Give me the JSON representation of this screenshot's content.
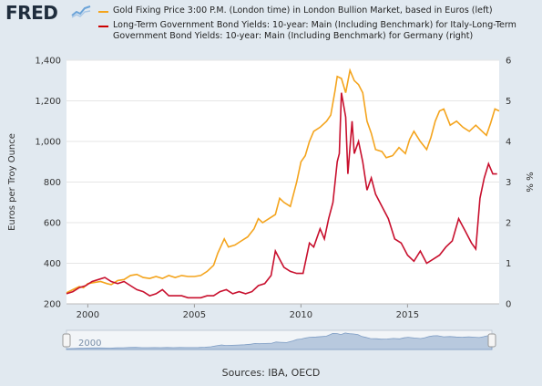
{
  "header": {
    "logo_text": "FRED",
    "logo_icon": "line-chart-icon"
  },
  "legend": {
    "gold_label": "Gold Fixing Price 3:00 P.M. (London time) in London Bullion Market, based in Euros (left)",
    "bonds_label": "Long-Term Government Bond Yields: 10-year: Main (Including Benchmark) for Italy-Long-Term Government Bond Yields: 10-year: Main (Including Benchmark) for Germany (right)"
  },
  "footer": {
    "sources": "Sources: IBA, OECD"
  },
  "colors": {
    "gold": "#f4a41d",
    "spread": "#c8102e",
    "plot_bg": "#ffffff",
    "page_bg": "#e1e9f0",
    "navigator_fill": "#b8c9de"
  },
  "navigator": {
    "label": "2000"
  },
  "chart_data": {
    "type": "line",
    "x_axis": {
      "ticks": [
        "2000",
        "2005",
        "2010",
        "2015"
      ],
      "range": [
        1999.0,
        2019.3
      ]
    },
    "y_left": {
      "label": "Euros per Troy Ounce",
      "range": [
        200,
        1400
      ],
      "ticks": [
        "200",
        "400",
        "600",
        "800",
        "1,000",
        "1,200",
        "1,400"
      ]
    },
    "y_right": {
      "label": "% %",
      "range": [
        0,
        6
      ],
      "ticks": [
        "0",
        "1",
        "2",
        "3",
        "4",
        "5",
        "6"
      ]
    },
    "grid": true,
    "series": [
      {
        "name": "Gold Fixing Price 3:00 P.M. (London time) in London Bullion Market, based in Euros (left)",
        "axis": "left",
        "x": [
          1999.0,
          1999.3,
          1999.6,
          1999.8,
          2000.0,
          2000.3,
          2000.6,
          2000.9,
          2001.1,
          2001.4,
          2001.7,
          2002.0,
          2002.3,
          2002.6,
          2002.9,
          2003.2,
          2003.5,
          2003.8,
          2004.1,
          2004.4,
          2004.7,
          2005.0,
          2005.3,
          2005.6,
          2005.9,
          2006.1,
          2006.4,
          2006.6,
          2006.9,
          2007.2,
          2007.5,
          2007.8,
          2008.0,
          2008.2,
          2008.5,
          2008.8,
          2009.0,
          2009.2,
          2009.5,
          2009.8,
          2010.0,
          2010.2,
          2010.4,
          2010.6,
          2010.9,
          2011.2,
          2011.4,
          2011.6,
          2011.7,
          2011.9,
          2012.1,
          2012.3,
          2012.5,
          2012.7,
          2012.9,
          2013.1,
          2013.3,
          2013.5,
          2013.8,
          2014.0,
          2014.3,
          2014.6,
          2014.9,
          2015.1,
          2015.3,
          2015.6,
          2015.9,
          2016.1,
          2016.3,
          2016.5,
          2016.7,
          2017.0,
          2017.3,
          2017.6,
          2017.9,
          2018.2,
          2018.5,
          2018.7,
          2018.9,
          2019.1,
          2019.3
        ],
        "y": [
          255,
          270,
          285,
          280,
          300,
          305,
          310,
          300,
          295,
          315,
          320,
          340,
          345,
          330,
          325,
          335,
          325,
          340,
          330,
          340,
          335,
          335,
          340,
          360,
          390,
          450,
          520,
          480,
          490,
          510,
          530,
          570,
          620,
          600,
          620,
          640,
          720,
          700,
          680,
          800,
          900,
          930,
          1000,
          1050,
          1070,
          1100,
          1130,
          1250,
          1320,
          1310,
          1240,
          1350,
          1300,
          1280,
          1240,
          1100,
          1040,
          960,
          950,
          920,
          930,
          970,
          940,
          1010,
          1050,
          1000,
          960,
          1020,
          1100,
          1150,
          1160,
          1080,
          1100,
          1070,
          1050,
          1080,
          1050,
          1030,
          1090,
          1160,
          1150
        ]
      },
      {
        "name": "Long-Term Government Bond Yields: 10-year: Main (Including Benchmark) for Italy-Long-Term Government Bond Yields: 10-year: Main (Including Benchmark) for Germany (right)",
        "axis": "right",
        "x": [
          1999.0,
          1999.3,
          1999.6,
          1999.9,
          2000.2,
          2000.5,
          2000.8,
          2001.1,
          2001.4,
          2001.7,
          2002.0,
          2002.3,
          2002.6,
          2002.9,
          2003.2,
          2003.5,
          2003.8,
          2004.1,
          2004.4,
          2004.7,
          2005.0,
          2005.3,
          2005.6,
          2005.9,
          2006.2,
          2006.5,
          2006.8,
          2007.1,
          2007.4,
          2007.7,
          2008.0,
          2008.3,
          2008.6,
          2008.8,
          2009.0,
          2009.2,
          2009.5,
          2009.8,
          2010.1,
          2010.4,
          2010.6,
          2010.9,
          2011.1,
          2011.3,
          2011.5,
          2011.7,
          2011.8,
          2011.9,
          2012.1,
          2012.2,
          2012.4,
          2012.5,
          2012.7,
          2012.9,
          2013.1,
          2013.3,
          2013.5,
          2013.8,
          2014.1,
          2014.4,
          2014.7,
          2015.0,
          2015.3,
          2015.6,
          2015.9,
          2016.2,
          2016.5,
          2016.8,
          2017.1,
          2017.4,
          2017.7,
          2018.0,
          2018.2,
          2018.4,
          2018.6,
          2018.8,
          2019.0,
          2019.2
        ],
        "y": [
          0.25,
          0.3,
          0.4,
          0.45,
          0.55,
          0.6,
          0.65,
          0.55,
          0.5,
          0.55,
          0.45,
          0.35,
          0.3,
          0.2,
          0.25,
          0.35,
          0.2,
          0.2,
          0.2,
          0.15,
          0.15,
          0.15,
          0.2,
          0.2,
          0.3,
          0.35,
          0.25,
          0.3,
          0.25,
          0.3,
          0.45,
          0.5,
          0.7,
          1.3,
          1.1,
          0.9,
          0.8,
          0.75,
          0.75,
          1.5,
          1.4,
          1.85,
          1.6,
          2.1,
          2.5,
          3.5,
          3.7,
          5.2,
          4.6,
          3.2,
          4.5,
          3.7,
          4.0,
          3.5,
          2.8,
          3.1,
          2.7,
          2.4,
          2.1,
          1.6,
          1.5,
          1.2,
          1.05,
          1.3,
          1.0,
          1.1,
          1.2,
          1.4,
          1.55,
          2.1,
          1.8,
          1.5,
          1.35,
          2.6,
          3.1,
          3.45,
          3.2,
          3.2
        ]
      }
    ]
  }
}
